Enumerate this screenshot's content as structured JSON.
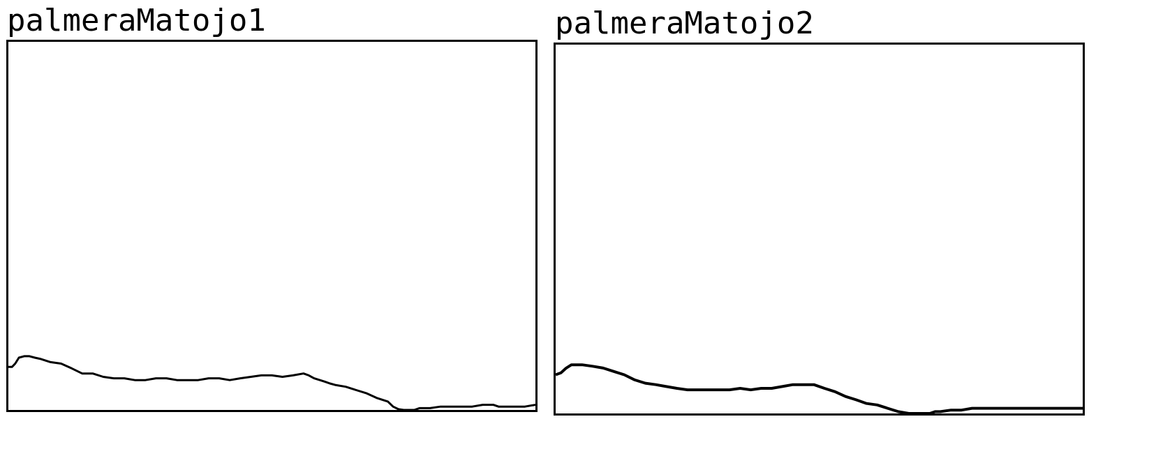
{
  "chart_data": [
    {
      "type": "line",
      "title": "palmeraMatojo1",
      "xlabel": "",
      "ylabel": "",
      "xlim": [
        0,
        100
      ],
      "ylim": [
        0,
        100
      ],
      "grid": false,
      "series": [
        {
          "color": "#000000",
          "x": [
            0,
            0.7,
            1.3,
            2,
            3,
            4,
            5,
            6,
            8,
            10,
            12,
            14,
            16,
            18,
            20,
            22,
            24,
            26,
            28,
            30,
            32,
            34,
            36,
            38,
            40,
            42,
            44,
            46,
            48,
            50,
            52,
            54,
            56,
            57,
            58,
            60,
            61,
            62,
            64,
            66,
            68,
            70,
            72,
            73,
            74,
            75,
            76,
            77,
            78,
            80,
            82,
            84,
            86,
            88,
            90,
            92,
            93,
            94,
            96,
            98,
            100
          ],
          "y": [
            11.7,
            11.7,
            12.6,
            14.2,
            14.6,
            14.6,
            14.2,
            13.9,
            13.0,
            12.6,
            11.3,
            9.9,
            9.9,
            9.0,
            8.6,
            8.6,
            8.1,
            8.1,
            8.6,
            8.6,
            8.1,
            8.1,
            8.1,
            8.6,
            8.6,
            8.1,
            8.6,
            9.0,
            9.4,
            9.4,
            9.0,
            9.4,
            9.9,
            9.4,
            8.6,
            7.7,
            7.2,
            6.8,
            6.3,
            5.4,
            4.5,
            3.2,
            2.3,
            0.9,
            0.2,
            0,
            0,
            0,
            0.5,
            0.5,
            0.9,
            0.9,
            0.9,
            0.9,
            1.4,
            1.4,
            0.9,
            0.9,
            0.9,
            0.9,
            1.4
          ]
        }
      ]
    },
    {
      "type": "line",
      "title": "palmeraMatojo2",
      "xlabel": "",
      "ylabel": "",
      "xlim": [
        0,
        100
      ],
      "ylim": [
        0,
        100
      ],
      "grid": false,
      "series": [
        {
          "color": "#000000",
          "x": [
            0,
            1,
            2,
            3,
            5,
            7,
            9,
            11,
            13,
            15,
            17,
            19,
            21,
            23,
            25,
            27,
            29,
            31,
            33,
            35,
            37,
            39,
            41,
            43,
            45,
            47,
            49,
            51,
            53,
            55,
            57,
            59,
            61,
            63,
            65,
            67,
            69,
            71,
            72,
            73,
            75,
            77,
            79,
            81,
            83,
            85,
            87,
            89,
            91,
            93,
            95,
            97,
            99,
            100
          ],
          "y": [
            10.5,
            11.0,
            12.3,
            13.2,
            13.2,
            12.8,
            12.3,
            11.4,
            10.5,
            9.1,
            8.2,
            7.8,
            7.3,
            6.8,
            6.4,
            6.4,
            6.4,
            6.4,
            6.4,
            6.8,
            6.4,
            6.8,
            6.8,
            7.3,
            7.8,
            7.8,
            7.8,
            6.8,
            5.9,
            4.6,
            3.7,
            2.7,
            2.3,
            1.4,
            0.5,
            0,
            0,
            0,
            0.5,
            0.5,
            0.9,
            0.9,
            1.4,
            1.4,
            1.4,
            1.4,
            1.4,
            1.4,
            1.4,
            1.4,
            1.4,
            1.4,
            1.4,
            1.4
          ]
        }
      ]
    }
  ]
}
